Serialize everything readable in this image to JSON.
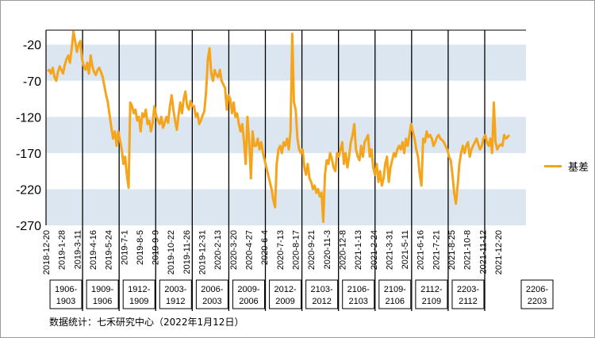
{
  "chart_data": {
    "type": "line",
    "title": "",
    "xlabel": "",
    "ylabel": "",
    "ylim": [
      -270,
      0
    ],
    "y_ticks": [
      "-20",
      "-70",
      "-120",
      "-170",
      "-220",
      "-270"
    ],
    "y_tick_values": [
      -20,
      -70,
      -120,
      -170,
      -220,
      -270
    ],
    "y_band_ranges": [
      [
        -70,
        -20
      ],
      [
        -170,
        -120
      ],
      [
        -270,
        -220
      ]
    ],
    "band_color": "#dce6f1",
    "line_color": "#f5a51c",
    "x_ticks": [
      "2018-12-20",
      "2019-1-28",
      "2019-3-11",
      "2019-4-16",
      "2019-5-24",
      "2019-7-1",
      "2019-8-5",
      "2019-9-9",
      "2019-10-22",
      "2019-11-26",
      "2019-12-31",
      "2020-2-13",
      "2020-3-20",
      "2020-4-27",
      "2020-6-4",
      "2020-7-13",
      "2020-8-17",
      "2020-9-21",
      "2020-11-3",
      "2020-12-8",
      "2021-1-13",
      "2021-2-24",
      "2021-3-31",
      "2021-5-11",
      "2021-6-16",
      "2021-7-21",
      "2021-8-25",
      "2021-10-8",
      "2021-11-12",
      "2021-12-20"
    ],
    "segment_labels": [
      [
        "1906-",
        "1903"
      ],
      [
        "1909-",
        "1906"
      ],
      [
        "1912-",
        "1909"
      ],
      [
        "2003-",
        "1912"
      ],
      [
        "2006-",
        "2003"
      ],
      [
        "2009-",
        "2006"
      ],
      [
        "2012-",
        "2009"
      ],
      [
        "2103-",
        "2012"
      ],
      [
        "2106-",
        "2103"
      ],
      [
        "2109-",
        "2106"
      ],
      [
        "2112-",
        "2109"
      ],
      [
        "2203-",
        "2112"
      ],
      [
        "2206-",
        "2203"
      ]
    ],
    "series": [
      {
        "name": "基差",
        "values": [
          -57,
          -55,
          -60,
          -52,
          -65,
          -70,
          -58,
          -50,
          -55,
          -60,
          -48,
          -40,
          -35,
          -45,
          -25,
          -2,
          -15,
          -30,
          -20,
          -15,
          -40,
          -50,
          -55,
          -45,
          -60,
          -35,
          -50,
          -58,
          -62,
          -55,
          -52,
          -58,
          -65,
          -78,
          -90,
          -100,
          -118,
          -135,
          -150,
          -140,
          -160,
          -140,
          -152,
          -165,
          -185,
          -175,
          -200,
          -218,
          -100,
          -105,
          -115,
          -110,
          -125,
          -120,
          -140,
          -115,
          -120,
          -110,
          -130,
          -125,
          -140,
          -128,
          -105,
          -118,
          -125,
          -130,
          -120,
          -135,
          -128,
          -120,
          -128,
          -105,
          -90,
          -110,
          -125,
          -138,
          -118,
          -100,
          -115,
          -95,
          -85,
          -105,
          -110,
          -98,
          -105,
          -105,
          -120,
          -115,
          -130,
          -125,
          -118,
          -112,
          -85,
          -40,
          -25,
          -60,
          -70,
          -55,
          -62,
          -65,
          -55,
          -70,
          -75,
          -80,
          -110,
          -90,
          -95,
          -115,
          -100,
          -120,
          -115,
          -130,
          -140,
          -130,
          -155,
          -185,
          -120,
          -155,
          -205,
          -140,
          -160,
          -160,
          -150,
          -165,
          -155,
          -170,
          -180,
          -190,
          -200,
          -210,
          -220,
          -235,
          -245,
          -185,
          -165,
          -160,
          -170,
          -155,
          -160,
          -150,
          -165,
          -140,
          -5,
          -100,
          -110,
          -150,
          -165,
          -170,
          -165,
          -190,
          -200,
          -185,
          -205,
          -210,
          -220,
          -215,
          -225,
          -220,
          -230,
          -225,
          -265,
          -200,
          -180,
          -185,
          -170,
          -178,
          -190,
          -195,
          -170,
          -175,
          -165,
          -155,
          -185,
          -170,
          -190,
          -175,
          -155,
          -145,
          -130,
          -165,
          -175,
          -180,
          -160,
          -175,
          -155,
          -150,
          -145,
          -175,
          -165,
          -190,
          -200,
          -185,
          -210,
          -195,
          -215,
          -205,
          -185,
          -175,
          -210,
          -190,
          -180,
          -170,
          -175,
          -165,
          -160,
          -165,
          -155,
          -170,
          -150,
          -160,
          -145,
          -130,
          -140,
          -150,
          -165,
          -175,
          -200,
          -215,
          -150,
          -155,
          -140,
          -148,
          -145,
          -150,
          -160,
          -155,
          -148,
          -145,
          -150,
          -152,
          -155,
          -160,
          -165,
          -175,
          -180,
          -200,
          -225,
          -240,
          -215,
          -185,
          -170,
          -160,
          -170,
          -160,
          -155,
          -175,
          -165,
          -160,
          -155,
          -150,
          -158,
          -165,
          -160,
          -150,
          -145,
          -155,
          -160,
          -150,
          -170,
          -100,
          -155,
          -165,
          -160,
          -158,
          -160,
          -145,
          -150,
          -148,
          -145
        ]
      }
    ],
    "legend_position": "right",
    "grid": false
  },
  "legend": {
    "label": "基差"
  },
  "source": "数据统计：七禾研究中心（2022年1月12日）"
}
